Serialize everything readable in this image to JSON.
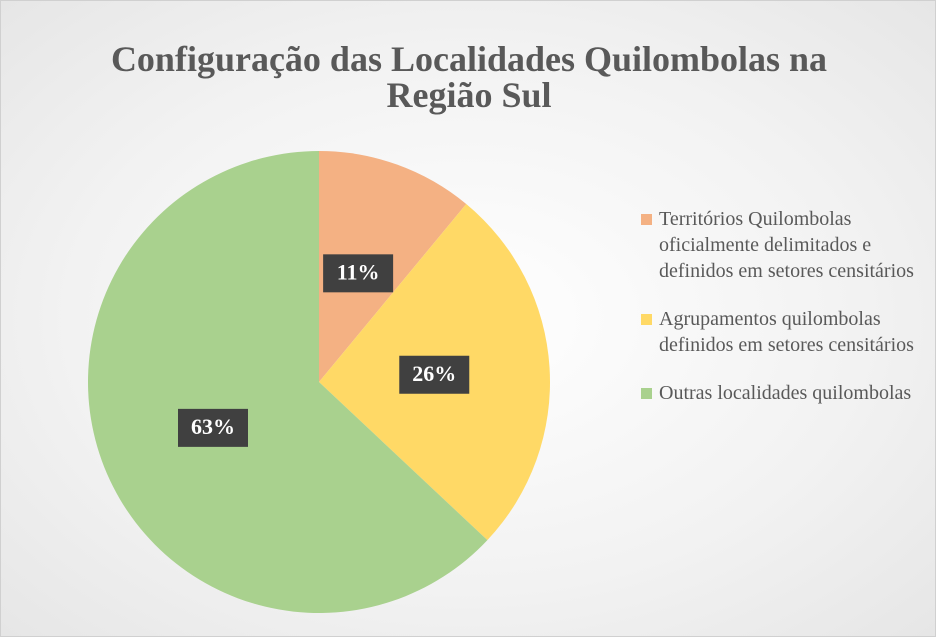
{
  "chart_data": {
    "type": "pie",
    "title": "Configuração das Localidades Quilombolas na Região Sul",
    "categories": [
      "Territórios Quilombolas oficialmente delimitados e definidos em setores censitários",
      "Agrupamentos quilombolas definidos em setores censitários",
      "Outras localidades quilombolas"
    ],
    "values": [
      11,
      26,
      63
    ],
    "value_labels": [
      "11%",
      "26%",
      "63%"
    ],
    "colors": [
      "#f4b183",
      "#ffd966",
      "#a9d18e"
    ],
    "legend": "right"
  }
}
